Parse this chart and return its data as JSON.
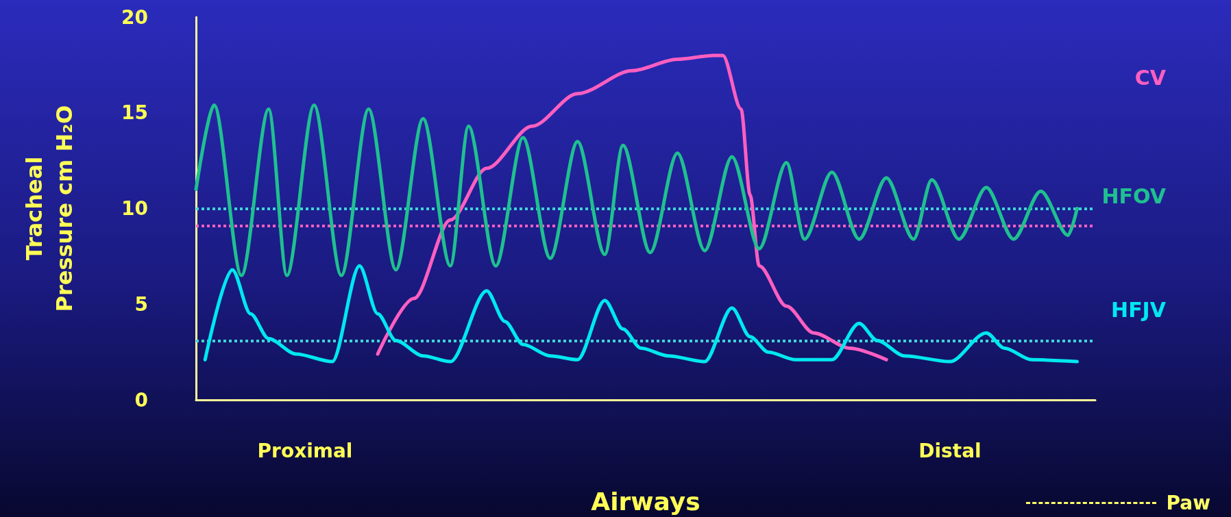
{
  "chart_data": {
    "type": "line",
    "xlabel": "Airways",
    "ylabel": "Tracheal\nPressure cm H₂O",
    "categories": [
      null,
      null,
      null,
      null,
      null,
      null,
      null,
      null,
      null,
      null,
      null,
      null,
      "Proximal",
      null,
      null,
      null,
      null,
      null,
      null,
      null,
      null,
      null,
      null,
      null,
      null,
      null,
      null,
      null,
      null,
      null,
      null,
      null,
      null,
      null,
      null,
      null,
      null,
      null,
      null,
      null,
      null,
      null,
      null,
      null,
      null,
      null,
      null,
      null,
      null,
      null,
      null,
      null,
      null,
      null,
      null,
      null,
      null,
      null,
      null,
      null,
      null,
      null,
      null,
      null,
      null,
      null,
      null,
      null,
      null,
      null,
      null,
      null,
      null,
      null,
      null,
      null,
      null,
      null,
      null,
      null,
      null,
      null,
      null,
      "Distal",
      null,
      null,
      null,
      null,
      null,
      null,
      null,
      null,
      null,
      null,
      null,
      null,
      null,
      null,
      null,
      null
    ],
    "ylim": [
      0,
      20
    ],
    "yticks": [
      0,
      5,
      10,
      15,
      20
    ],
    "grid": false,
    "marker": "none",
    "line_style": "solid",
    "series": [
      {
        "name": "CV",
        "color": "#ff5fc0",
        "values": [
          null,
          null,
          null,
          null,
          null,
          null,
          null,
          null,
          null,
          null,
          null,
          null,
          null,
          null,
          null,
          null,
          null,
          null,
          null,
          null,
          2.4,
          null,
          null,
          null,
          5.3,
          null,
          null,
          null,
          9.4,
          null,
          null,
          null,
          12.1,
          null,
          null,
          null,
          null,
          14.3,
          null,
          null,
          null,
          null,
          16.0,
          null,
          null,
          null,
          null,
          null,
          17.2,
          null,
          null,
          null,
          null,
          17.8,
          null,
          null,
          null,
          18.0,
          18.0,
          null,
          15.2,
          10.7,
          7.0,
          null,
          null,
          4.9,
          null,
          null,
          3.5,
          null,
          null,
          null,
          2.7,
          null,
          null,
          null,
          2.1,
          null,
          null,
          null,
          null,
          null,
          null,
          null,
          null,
          null,
          null,
          null,
          null,
          null,
          null,
          null,
          null,
          null,
          null,
          null,
          null,
          null,
          null,
          null
        ]
      },
      {
        "name": "HFOV",
        "color": "#1fc08f",
        "values": [
          11.0,
          null,
          15.4,
          null,
          null,
          6.5,
          null,
          null,
          15.2,
          null,
          6.5,
          null,
          null,
          15.4,
          null,
          null,
          6.5,
          null,
          null,
          15.2,
          null,
          null,
          6.8,
          null,
          null,
          14.7,
          null,
          null,
          7.0,
          null,
          14.3,
          null,
          null,
          7.0,
          null,
          null,
          13.7,
          null,
          null,
          7.4,
          null,
          null,
          13.5,
          null,
          null,
          7.6,
          null,
          13.3,
          null,
          null,
          7.7,
          null,
          null,
          12.9,
          null,
          null,
          7.8,
          null,
          null,
          12.7,
          null,
          null,
          7.9,
          null,
          null,
          12.4,
          null,
          8.4,
          null,
          null,
          11.9,
          null,
          null,
          8.4,
          null,
          null,
          11.6,
          null,
          null,
          8.4,
          null,
          11.5,
          null,
          null,
          8.4,
          null,
          null,
          11.1,
          null,
          null,
          8.4,
          null,
          null,
          10.9,
          null,
          null,
          8.6,
          10.0,
          null,
          null
        ]
      },
      {
        "name": "HFJV",
        "color": "#00e8f0",
        "values": [
          null,
          2.1,
          null,
          null,
          6.8,
          null,
          4.5,
          null,
          3.2,
          null,
          null,
          2.4,
          null,
          null,
          null,
          2.0,
          null,
          null,
          7.0,
          null,
          4.5,
          null,
          3.1,
          null,
          null,
          2.3,
          null,
          null,
          2.0,
          null,
          null,
          null,
          5.7,
          null,
          4.1,
          null,
          2.9,
          null,
          null,
          2.3,
          null,
          null,
          2.1,
          null,
          null,
          5.2,
          null,
          3.7,
          null,
          2.7,
          null,
          null,
          2.3,
          null,
          null,
          null,
          2.0,
          null,
          null,
          4.8,
          null,
          3.3,
          null,
          2.5,
          null,
          null,
          2.1,
          null,
          null,
          null,
          2.1,
          null,
          null,
          4.0,
          null,
          3.1,
          null,
          null,
          2.3,
          null,
          null,
          null,
          null,
          2.0,
          null,
          null,
          null,
          3.5,
          null,
          2.7,
          null,
          null,
          2.1,
          null,
          null,
          null,
          null,
          2.0,
          null,
          null
        ]
      }
    ],
    "ref_lines": [
      {
        "axis": "y",
        "value": 10.0,
        "color": "#3fd6d6",
        "line_style": "dotted"
      },
      {
        "axis": "y",
        "value": 9.1,
        "color": "#ff5fc0",
        "line_style": "dotted"
      },
      {
        "axis": "y",
        "value": 3.1,
        "color": "#3fd6d6",
        "line_style": "dotted"
      }
    ],
    "annotations": [
      "Paw"
    ]
  }
}
